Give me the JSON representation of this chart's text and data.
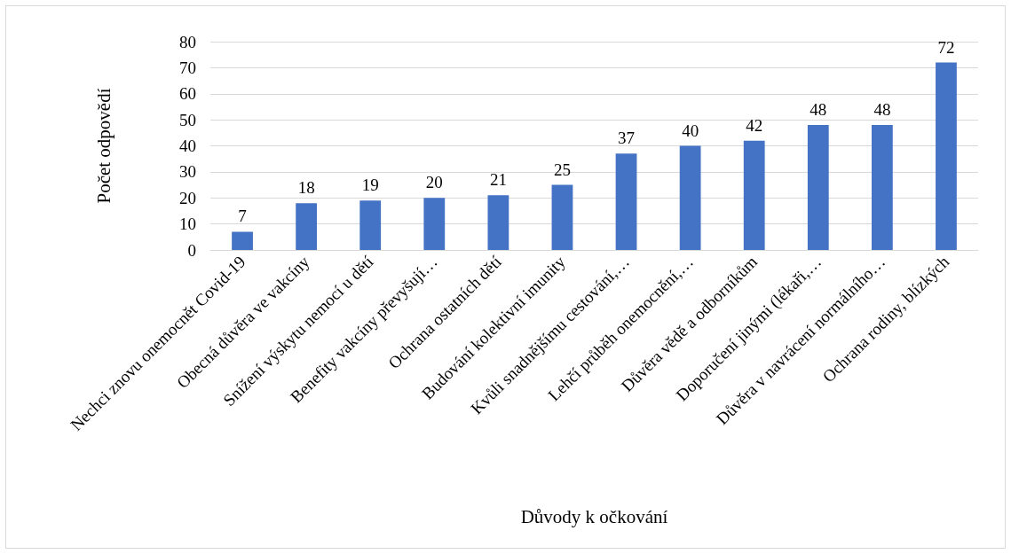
{
  "chart_data": {
    "type": "bar",
    "xlabel": "Důvody k očkování",
    "ylabel": "Počet odpovědí",
    "categories": [
      "Nechci znovu onemocnět Covid-19",
      "Obecná důvěra ve vakcíny",
      "Snížení výskytu nemocí u dětí",
      "Benefity vakcíny převyšují…",
      "Ochrana ostatních dětí",
      "Budování kolektivní imunity",
      "Kvůli snadnějšímu cestování,…",
      "Lehčí průběh onemocnění,…",
      "Důvěra vědě a odborníkům",
      "Doporučení jinými (lékaři,…",
      "Důvěra v navrácení normálního…",
      "Ochrana rodiny, blízkých"
    ],
    "values": [
      7,
      18,
      19,
      20,
      21,
      25,
      37,
      40,
      42,
      48,
      48,
      72
    ],
    "color": "#4472c4",
    "ylim": [
      0,
      80
    ],
    "yticks": [
      0,
      10,
      20,
      30,
      40,
      50,
      60,
      70,
      80
    ],
    "grid": "y",
    "data_labels": true
  }
}
